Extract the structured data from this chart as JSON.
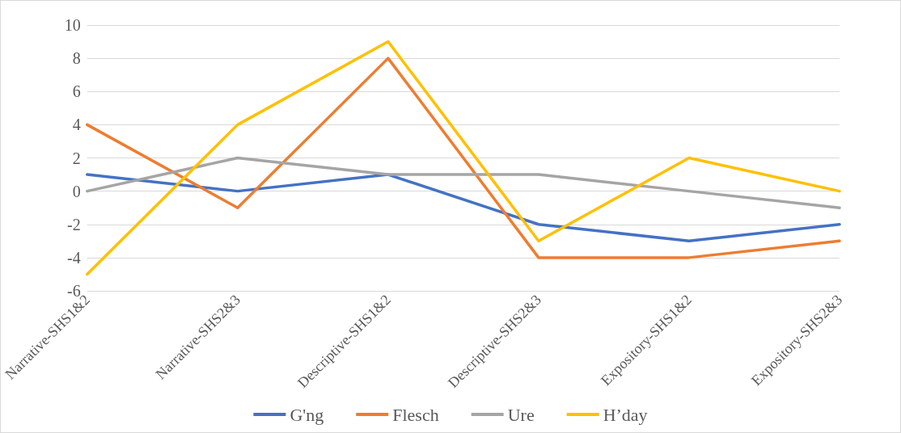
{
  "chart_data": {
    "type": "line",
    "categories": [
      "Narrative-SHS1&2",
      "Narrative-SHS2&3",
      "Descriptive-SHS1&2",
      "Descriptive-SHS2&3",
      "Expository-SHS1&2",
      "Expository-SHS2&3"
    ],
    "series": [
      {
        "name": "G'ng",
        "color": "#4472c4",
        "values": [
          1,
          0,
          1,
          -2,
          -3,
          -2
        ]
      },
      {
        "name": "Flesch",
        "color": "#ed7d31",
        "values": [
          4,
          -1,
          8,
          -4,
          -4,
          -3
        ]
      },
      {
        "name": "Ure",
        "color": "#a5a5a5",
        "values": [
          0,
          2,
          1,
          1,
          0,
          -1
        ]
      },
      {
        "name": "H’day",
        "color": "#ffc000",
        "values": [
          -5,
          4,
          9,
          -3,
          2,
          0
        ]
      }
    ],
    "ylim": [
      -6,
      10
    ],
    "yticks": [
      -6,
      -4,
      -2,
      0,
      2,
      4,
      6,
      8,
      10
    ],
    "grid": "y",
    "legend": "bottom",
    "marker": "none",
    "line_style": "solid"
  }
}
